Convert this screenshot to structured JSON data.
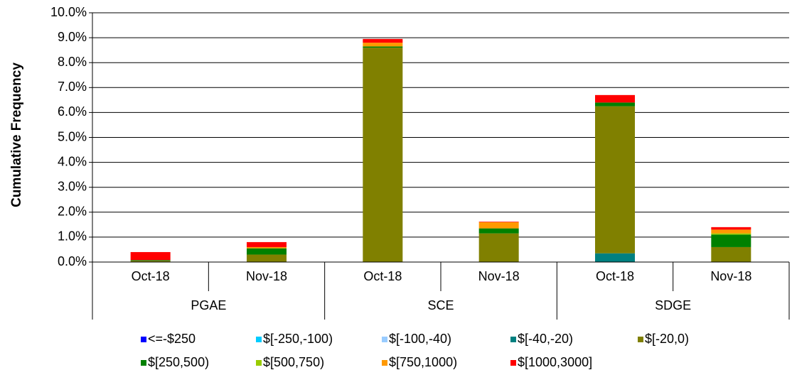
{
  "chart_data": {
    "type": "stacked_bar",
    "y_label": "Cumulative Frequency",
    "groups": [
      {
        "name": "PGAE",
        "categories": [
          "Oct-18",
          "Nov-18"
        ]
      },
      {
        "name": "SCE",
        "categories": [
          "Oct-18",
          "Nov-18"
        ]
      },
      {
        "name": "SDGE",
        "categories": [
          "Oct-18",
          "Nov-18"
        ]
      }
    ],
    "series": [
      {
        "name": "<=-$250",
        "color": "#0000ff",
        "values": [
          0,
          0,
          0,
          0,
          0,
          0
        ]
      },
      {
        "name": "$[-250,-100)",
        "color": "#00ccff",
        "values": [
          0,
          0,
          0,
          0,
          0,
          0
        ]
      },
      {
        "name": "$[-100,-40)",
        "color": "#99ccff",
        "values": [
          0,
          0,
          0,
          0,
          0,
          0
        ]
      },
      {
        "name": "$[-40,-20)",
        "color": "#008080",
        "values": [
          0,
          0,
          0,
          0,
          0.35,
          0
        ]
      },
      {
        "name": "$[-20,0)",
        "color": "#808000",
        "values": [
          0.05,
          0.3,
          8.6,
          1.15,
          5.9,
          0.6
        ]
      },
      {
        "name": "$[250,500)",
        "color": "#008000",
        "values": [
          0.03,
          0.25,
          0.05,
          0.2,
          0.15,
          0.5
        ]
      },
      {
        "name": "$[500,750)",
        "color": "#99cc00",
        "values": [
          0,
          0,
          0,
          0,
          0,
          0.05
        ]
      },
      {
        "name": "$[750,1000)",
        "color": "#ff9900",
        "values": [
          0,
          0.05,
          0.15,
          0.25,
          0,
          0.15
        ]
      },
      {
        "name": "$[1000,3000]",
        "color": "#ff0000",
        "values": [
          0.32,
          0.2,
          0.15,
          0.02,
          0.3,
          0.1
        ]
      }
    ],
    "ylim": [
      0,
      10
    ],
    "yticks": [
      {
        "value": 0,
        "label": "0.0%"
      },
      {
        "value": 1,
        "label": "1.0%"
      },
      {
        "value": 2,
        "label": "2.0%"
      },
      {
        "value": 3,
        "label": "3.0%"
      },
      {
        "value": 4,
        "label": "4.0%"
      },
      {
        "value": 5,
        "label": "5.0%"
      },
      {
        "value": 6,
        "label": "6.0%"
      },
      {
        "value": 7,
        "label": "7.0%"
      },
      {
        "value": 8,
        "label": "8.0%"
      },
      {
        "value": 9,
        "label": "9.0%"
      },
      {
        "value": 10,
        "label": "10.0%"
      }
    ],
    "grid": true
  }
}
